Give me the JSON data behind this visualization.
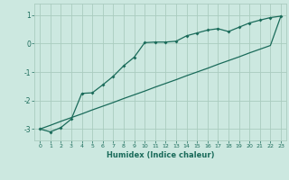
{
  "xlabel": "Humidex (Indice chaleur)",
  "bg_color": "#cce8e0",
  "grid_color": "#aaccbf",
  "line_color": "#1a6b5a",
  "xlim": [
    -0.5,
    23.5
  ],
  "ylim": [
    -3.4,
    1.4
  ],
  "yticks": [
    -3,
    -2,
    -1,
    0,
    1
  ],
  "xticks": [
    0,
    1,
    2,
    3,
    4,
    5,
    6,
    7,
    8,
    9,
    10,
    11,
    12,
    13,
    14,
    15,
    16,
    17,
    18,
    19,
    20,
    21,
    22,
    23
  ],
  "line1_x": [
    0,
    1,
    2,
    3,
    4,
    5,
    6,
    7,
    8,
    9,
    10,
    11,
    12,
    13,
    14,
    15,
    16,
    17,
    18,
    19,
    20,
    21,
    22,
    23
  ],
  "line1_y": [
    -3.0,
    -3.1,
    -2.95,
    -2.65,
    -1.75,
    -1.73,
    -1.45,
    -1.15,
    -0.78,
    -0.48,
    0.03,
    0.05,
    0.05,
    0.08,
    0.27,
    0.37,
    0.47,
    0.52,
    0.42,
    0.57,
    0.72,
    0.82,
    0.91,
    0.96
  ],
  "line2_x": [
    0,
    1,
    2,
    3,
    4,
    5,
    6,
    7,
    8,
    9,
    10,
    11,
    12,
    13,
    14,
    15,
    16,
    17,
    18,
    19,
    20,
    21,
    22,
    23
  ],
  "line2_y": [
    -3.0,
    -2.87,
    -2.73,
    -2.6,
    -2.47,
    -2.33,
    -2.2,
    -2.07,
    -1.93,
    -1.8,
    -1.67,
    -1.53,
    -1.4,
    -1.27,
    -1.13,
    -1.0,
    -0.87,
    -0.73,
    -0.6,
    -0.47,
    -0.33,
    -0.2,
    -0.07,
    0.96
  ]
}
